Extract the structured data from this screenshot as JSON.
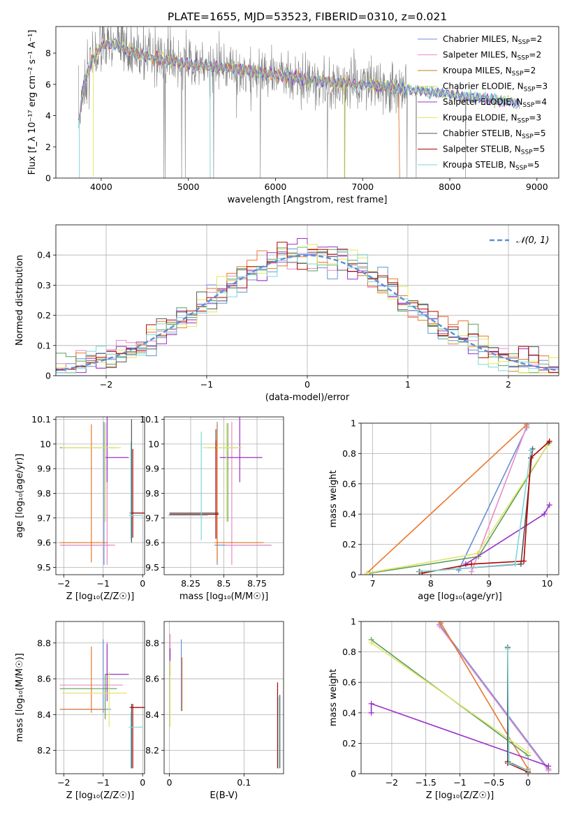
{
  "suptitle": "PLATE=1655, MJD=53523, FIBERID=0310, z=0.021",
  "colors": {
    "chabrier_miles": "#6a8fd8",
    "salpeter_miles": "#e88cc4",
    "kroupa_miles": "#b8860b",
    "chabrier_elodie": "#e3e36a",
    "salpeter_elodie": "#9b30c8",
    "kroupa_elodie": "#e2e85a",
    "chabrier_stelib": "#555555",
    "salpeter_stelib": "#b00000",
    "kroupa_stelib": "#7fd6d6",
    "orange": "#e8772e",
    "green": "#5aa05a",
    "data": "#808080",
    "normal": "#5b8fd6"
  },
  "chart_data": [
    {
      "id": "spectrum",
      "type": "line",
      "xlabel": "wavelength [Angstrom, rest frame]",
      "ylabel": "Flux [f_λ 10⁻¹⁷ erg cm⁻² s⁻¹ A⁻¹]",
      "xlim": [
        3480,
        9250
      ],
      "ylim": [
        0,
        9.7
      ],
      "xticks": [
        4000,
        5000,
        6000,
        7000,
        8000,
        9000
      ],
      "yticks": [
        0,
        2,
        4,
        6,
        8
      ],
      "legend_position": "top-right",
      "legend": [
        {
          "label": "Chabrier MILES, N",
          "sub": "SSP",
          "suffix": "=2",
          "color_key": "chabrier_miles"
        },
        {
          "label": "Salpeter MILES, N",
          "sub": "SSP",
          "suffix": "=2",
          "color_key": "salpeter_miles"
        },
        {
          "label": "Kroupa MILES, N",
          "sub": "SSP",
          "suffix": "=2",
          "color_key": "kroupa_miles"
        },
        {
          "label": "Chabrier ELODIE, N",
          "sub": "SSP",
          "suffix": "=3",
          "color_key": "chabrier_elodie"
        },
        {
          "label": "Salpeter ELODIE, N",
          "sub": "SSP",
          "suffix": "=4",
          "color_key": "salpeter_elodie"
        },
        {
          "label": "Kroupa ELODIE, N",
          "sub": "SSP",
          "suffix": "=3",
          "color_key": "kroupa_elodie"
        },
        {
          "label": "Chabrier STELIB, N",
          "sub": "SSP",
          "suffix": "=5",
          "color_key": "chabrier_stelib"
        },
        {
          "label": "Salpeter STELIB, N",
          "sub": "SSP",
          "suffix": "=5",
          "color_key": "salpeter_stelib"
        },
        {
          "label": "Kroupa STELIB, N",
          "sub": "SSP",
          "suffix": "=5",
          "color_key": "kroupa_stelib"
        }
      ],
      "model_curve": {
        "x": [
          3740,
          3800,
          3900,
          4000,
          4100,
          4300,
          4500,
          5000,
          5500,
          6000,
          6500,
          7000,
          7500,
          8000,
          8500,
          8800
        ],
        "y": [
          3.4,
          6.0,
          7.6,
          8.4,
          8.6,
          8.2,
          7.8,
          7.3,
          7.0,
          6.6,
          6.2,
          6.0,
          5.7,
          5.35,
          5.0,
          4.8
        ]
      },
      "data_noise_range": [
        3740,
        7500
      ]
    },
    {
      "id": "residuals",
      "type": "histogram",
      "xlabel": "(data-model)/error",
      "ylabel": "Normed distribution",
      "xlim": [
        -2.5,
        2.5
      ],
      "ylim": [
        0,
        0.5
      ],
      "xticks": [
        -2,
        -1,
        0,
        1,
        2
      ],
      "yticks": [
        0,
        0.1,
        0.2,
        0.3,
        0.4
      ],
      "grid": true,
      "legend_position": "top-right",
      "legend_label": "𝒩(0, 1)",
      "bin_width": 0.1
    },
    {
      "id": "age_vs_Z",
      "type": "errorbar",
      "xlabel": "Z [log₁₀(Z/Z☉)]",
      "ylabel": "age  [log₁₀(age/yr)]",
      "xlim": [
        -2.2,
        0.05
      ],
      "ylim": [
        9.47,
        10.11
      ],
      "xticks": [
        -2,
        -1,
        0
      ],
      "yticks": [
        9.5,
        9.6,
        9.7,
        9.8,
        9.9,
        10.0,
        10.1
      ],
      "grid": true,
      "points": [
        {
          "x": -0.98,
          "xe": [
            1.1,
            0.16
          ],
          "y": 9.59,
          "ye": [
            0.08,
            0.5
          ],
          "color_key": "chabrier_miles"
        },
        {
          "x": -0.9,
          "xe": [
            1.2,
            0.2
          ],
          "y": 9.59,
          "ye": [
            0.08,
            0.5
          ],
          "color_key": "salpeter_miles"
        },
        {
          "x": -1.3,
          "xe": [
            0.8,
            0.4
          ],
          "y": 9.6,
          "ye": [
            0.08,
            0.48
          ],
          "color_key": "orange"
        },
        {
          "x": -0.95,
          "xe": [
            1.15,
            0.3
          ],
          "y": 9.985,
          "ye": [
            0.3,
            0.1
          ],
          "color_key": "green"
        },
        {
          "x": -0.9,
          "xe": [
            0.05,
            0.55
          ],
          "y": 9.945,
          "ye": [
            0.1,
            0.2
          ],
          "color_key": "salpeter_elodie"
        },
        {
          "x": -0.95,
          "xe": [
            1.1,
            0.4
          ],
          "y": 9.985,
          "ye": [
            0.3,
            0.1
          ],
          "color_key": "chabrier_elodie"
        },
        {
          "x": -0.28,
          "xe": [
            0.05,
            0.28
          ],
          "y": 9.72,
          "ye": [
            0.12,
            0.38
          ],
          "color_key": "chabrier_stelib"
        },
        {
          "x": -0.25,
          "xe": [
            0.05,
            0.3
          ],
          "y": 9.72,
          "ye": [
            0.1,
            0.26
          ],
          "color_key": "salpeter_stelib"
        },
        {
          "x": -0.3,
          "xe": [
            0.05,
            0.3
          ],
          "y": 9.71,
          "ye": [
            0.1,
            0.3
          ],
          "color_key": "kroupa_stelib"
        }
      ]
    },
    {
      "id": "age_vs_mass",
      "type": "errorbar",
      "xlabel": "mass [log₁₀(M/M☉)]",
      "ylabel": "",
      "xlim": [
        8.05,
        8.95
      ],
      "ylim": [
        9.47,
        10.11
      ],
      "xticks": [
        8.25,
        8.5,
        8.75
      ],
      "yticks": [
        9.5,
        9.6,
        9.7,
        9.8,
        9.9,
        10.0,
        10.1
      ],
      "grid": true,
      "points": [
        {
          "x": 8.45,
          "xe": [
            0.02,
            0.4
          ],
          "y": 9.59,
          "ye": [
            0.08,
            0.5
          ],
          "color_key": "chabrier_miles"
        },
        {
          "x": 8.56,
          "xe": [
            0.05,
            0.3
          ],
          "y": 9.59,
          "ye": [
            0.08,
            0.5
          ],
          "color_key": "salpeter_miles"
        },
        {
          "x": 8.45,
          "xe": [
            0.02,
            0.35
          ],
          "y": 9.6,
          "ye": [
            0.08,
            0.48
          ],
          "color_key": "orange"
        },
        {
          "x": 8.53,
          "xe": [
            0.15,
            0.08
          ],
          "y": 9.985,
          "ye": [
            0.3,
            0.1
          ],
          "color_key": "green"
        },
        {
          "x": 8.62,
          "xe": [
            0.15,
            0.17
          ],
          "y": 9.945,
          "ye": [
            0.1,
            0.2
          ],
          "color_key": "salpeter_elodie"
        },
        {
          "x": 8.52,
          "xe": [
            0.18,
            0.12
          ],
          "y": 9.985,
          "ye": [
            0.3,
            0.1
          ],
          "color_key": "chabrier_elodie"
        },
        {
          "x": 8.44,
          "xe": [
            0.35,
            0.02
          ],
          "y": 9.72,
          "ye": [
            0.1,
            0.34
          ],
          "color_key": "chabrier_stelib"
        },
        {
          "x": 8.44,
          "xe": [
            0.35,
            0.02
          ],
          "y": 9.715,
          "ye": [
            0.1,
            0.3
          ],
          "color_key": "salpeter_stelib"
        },
        {
          "x": 8.33,
          "xe": [
            0.25,
            0.05
          ],
          "y": 9.71,
          "ye": [
            0.1,
            0.34
          ],
          "color_key": "kroupa_stelib"
        }
      ]
    },
    {
      "id": "mass_weight_vs_age",
      "type": "line",
      "xlabel": "age  [log₁₀(age/yr)]",
      "ylabel": "mass weight",
      "xlim": [
        6.8,
        10.2
      ],
      "ylim": [
        0,
        1.0
      ],
      "xticks": [
        7,
        8,
        9,
        10
      ],
      "yticks": [
        0,
        0.2,
        0.4,
        0.6,
        0.8,
        1.0
      ],
      "grid": true,
      "series": [
        {
          "color_key": "chabrier_miles",
          "x": [
            8.48,
            9.65
          ],
          "y": [
            0.03,
            0.97
          ]
        },
        {
          "color_key": "salpeter_miles",
          "x": [
            8.7,
            9.65
          ],
          "y": [
            0.02,
            0.98
          ]
        },
        {
          "color_key": "orange",
          "x": [
            6.9,
            9.65
          ],
          "y": [
            0.01,
            0.99
          ]
        },
        {
          "color_key": "green",
          "x": [
            6.95,
            8.82,
            10.03
          ],
          "y": [
            0.01,
            0.12,
            0.87
          ]
        },
        {
          "color_key": "salpeter_elodie",
          "x": [
            8.6,
            9.95,
            10.04
          ],
          "y": [
            0.07,
            0.4,
            0.46
          ]
        },
        {
          "color_key": "chabrier_elodie",
          "x": [
            6.9,
            8.8,
            10.0
          ],
          "y": [
            0.01,
            0.14,
            0.85
          ]
        },
        {
          "color_key": "chabrier_stelib",
          "x": [
            7.8,
            9.55,
            9.75
          ],
          "y": [
            0.02,
            0.07,
            0.83
          ]
        },
        {
          "color_key": "salpeter_stelib",
          "x": [
            7.85,
            8.7,
            9.6,
            9.72,
            10.04
          ],
          "y": [
            0.01,
            0.07,
            0.09,
            0.77,
            0.88
          ]
        },
        {
          "color_key": "kroupa_stelib",
          "x": [
            7.82,
            9.45,
            9.72
          ],
          "y": [
            0.02,
            0.07,
            0.82
          ]
        }
      ]
    },
    {
      "id": "mass_vs_Z",
      "type": "errorbar",
      "xlabel": "Z [log₁₀(Z/Z☉)]",
      "ylabel": "mass [log₁₀(M/M☉)]",
      "xlim": [
        -2.2,
        0.05
      ],
      "ylim": [
        8.07,
        8.92
      ],
      "xticks": [
        -2,
        -1,
        0
      ],
      "yticks": [
        8.2,
        8.4,
        8.6,
        8.8
      ],
      "grid": true,
      "points": [
        {
          "x": -1.0,
          "xe": [
            1.1,
            0.2
          ],
          "y": 8.43,
          "ye": [
            0.02,
            0.39
          ],
          "color_key": "chabrier_miles"
        },
        {
          "x": -0.9,
          "xe": [
            1.2,
            0.4
          ],
          "y": 8.565,
          "ye": [
            0.05,
            0.24
          ],
          "color_key": "salpeter_miles"
        },
        {
          "x": -1.3,
          "xe": [
            0.8,
            0.35
          ],
          "y": 8.43,
          "ye": [
            0.02,
            0.35
          ],
          "color_key": "orange"
        },
        {
          "x": -0.95,
          "xe": [
            1.15,
            0.3
          ],
          "y": 8.545,
          "ye": [
            0.17,
            0.08
          ],
          "color_key": "green"
        },
        {
          "x": -0.9,
          "xe": [
            0.05,
            0.55
          ],
          "y": 8.625,
          "ye": [
            0.15,
            0.17
          ],
          "color_key": "salpeter_elodie"
        },
        {
          "x": -0.85,
          "xe": [
            1.2,
            0.45
          ],
          "y": 8.52,
          "ye": [
            0.19,
            0.12
          ],
          "color_key": "chabrier_elodie"
        },
        {
          "x": -0.28,
          "xe": [
            0.05,
            0.28
          ],
          "y": 8.44,
          "ye": [
            0.34,
            0.02
          ],
          "color_key": "chabrier_stelib"
        },
        {
          "x": -0.25,
          "xe": [
            0.05,
            0.3
          ],
          "y": 8.44,
          "ye": [
            0.34,
            0.02
          ],
          "color_key": "salpeter_stelib"
        },
        {
          "x": -0.3,
          "xe": [
            0.05,
            0.3
          ],
          "y": 8.33,
          "ye": [
            0.23,
            0.08
          ],
          "color_key": "kroupa_stelib"
        }
      ]
    },
    {
      "id": "mass_vs_ebv",
      "type": "errorbar",
      "xlabel": "E(B-V)",
      "ylabel": "",
      "xlim": [
        -0.007,
        0.153
      ],
      "ylim": [
        8.07,
        8.92
      ],
      "xticks": [
        0.0,
        0.1
      ],
      "yticks": [
        8.2,
        8.4,
        8.6,
        8.8
      ],
      "grid": true,
      "points": [
        {
          "x": 0.001,
          "y": 8.8,
          "ye": [
            0.08,
            0.05
          ],
          "color_key": "salpeter_miles"
        },
        {
          "x": 0.001,
          "y": 8.72,
          "ye": [
            0.1,
            0.05
          ],
          "color_key": "salpeter_elodie"
        },
        {
          "x": 0.001,
          "y": 8.55,
          "ye": [
            0.22,
            0.15
          ],
          "color_key": "chabrier_elodie"
        },
        {
          "x": 0.016,
          "y": 8.62,
          "ye": [
            0.2,
            0.2
          ],
          "color_key": "chabrier_miles"
        },
        {
          "x": 0.017,
          "y": 8.55,
          "ye": [
            0.13,
            0.17
          ],
          "color_key": "orange"
        },
        {
          "x": 0.145,
          "y": 8.35,
          "ye": [
            0.25,
            0.23
          ],
          "color_key": "salpeter_stelib"
        },
        {
          "x": 0.146,
          "y": 8.32,
          "ye": [
            0.22,
            0.18
          ],
          "color_key": "kroupa_stelib"
        },
        {
          "x": 0.148,
          "y": 8.3,
          "ye": [
            0.2,
            0.21
          ],
          "color_key": "chabrier_stelib"
        }
      ]
    },
    {
      "id": "mass_weight_vs_Z",
      "type": "line",
      "xlabel": "Z [log₁₀(Z/Z☉)]",
      "ylabel": "mass weight",
      "xlim": [
        -2.45,
        0.45
      ],
      "ylim": [
        0,
        1.0
      ],
      "xticks": [
        -2.0,
        -1.5,
        -1.0,
        -0.5,
        0.0
      ],
      "yticks": [
        0,
        0.2,
        0.4,
        0.6,
        0.8,
        1.0
      ],
      "grid": true,
      "series": [
        {
          "color_key": "chabrier_miles",
          "x": [
            -1.3,
            0.3
          ],
          "y": [
            0.98,
            0.03
          ]
        },
        {
          "color_key": "salpeter_miles",
          "x": [
            -1.3,
            0.3
          ],
          "y": [
            0.97,
            0.02
          ]
        },
        {
          "color_key": "orange",
          "x": [
            -1.28,
            0.0
          ],
          "y": [
            0.99,
            0.03
          ]
        },
        {
          "color_key": "green",
          "x": [
            -2.3,
            0.0
          ],
          "y": [
            0.88,
            0.12
          ]
        },
        {
          "color_key": "salpeter_elodie",
          "x": [
            -2.3,
            -2.3,
            0.3
          ],
          "y": [
            0.4,
            0.46,
            0.05
          ]
        },
        {
          "color_key": "chabrier_elodie",
          "x": [
            -2.3,
            0.0
          ],
          "y": [
            0.86,
            0.14
          ]
        },
        {
          "color_key": "chabrier_stelib",
          "x": [
            -0.3,
            -0.3,
            0.0
          ],
          "y": [
            0.83,
            0.08,
            0.02
          ]
        },
        {
          "color_key": "salpeter_stelib",
          "x": [
            -0.3,
            0.0
          ],
          "y": [
            0.07,
            0.01
          ]
        },
        {
          "color_key": "kroupa_stelib",
          "x": [
            -0.3,
            -0.28,
            0.0
          ],
          "y": [
            0.82,
            0.07,
            0.02
          ]
        }
      ]
    }
  ]
}
